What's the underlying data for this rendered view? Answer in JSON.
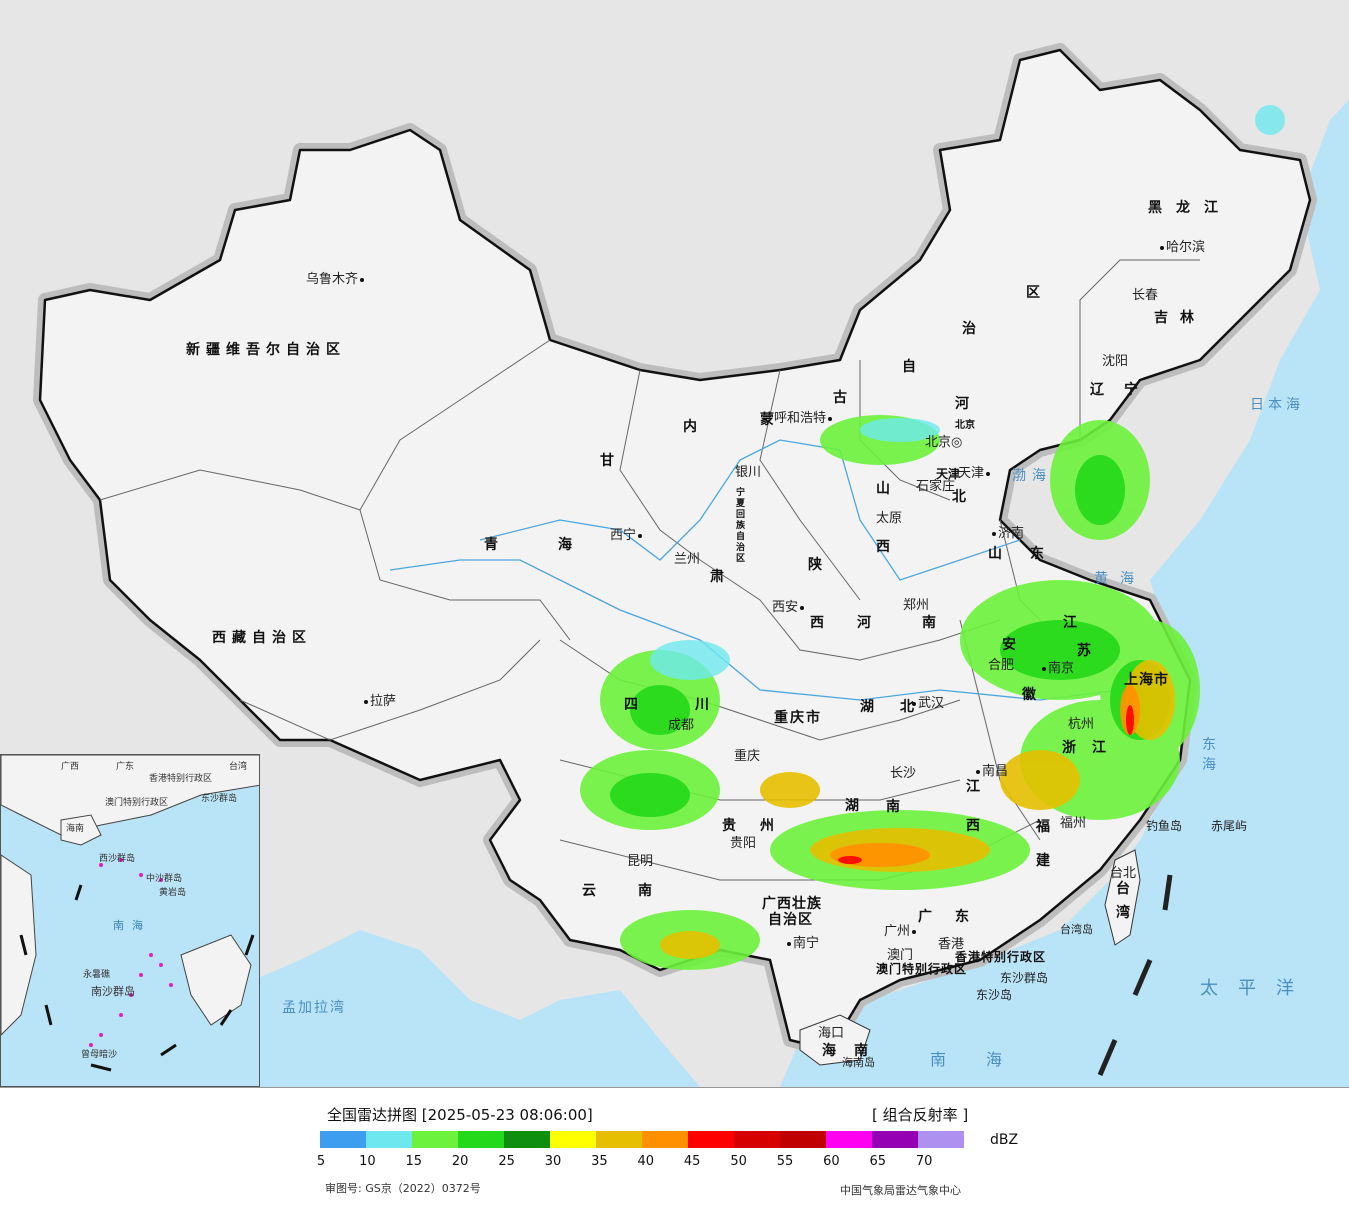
{
  "legend": {
    "title": "全国雷达拼图 [2025-05-23 08:06:00]",
    "product": "[ 组合反射率 ]",
    "unit": "dBZ",
    "approval": "审图号: GS京（2022）0372号",
    "source": "中国气象局雷达气象中心",
    "colors": [
      "#3d9ef0",
      "#6ee8ee",
      "#6cf23c",
      "#24d81a",
      "#0f8f0f",
      "#ffff00",
      "#e6c000",
      "#ff9000",
      "#ff0000",
      "#d60000",
      "#c00000",
      "#ff00f0",
      "#9600b4",
      "#ad90f0"
    ],
    "ticks": [
      "5",
      "10",
      "15",
      "20",
      "25",
      "30",
      "35",
      "40",
      "45",
      "50",
      "55",
      "60",
      "65",
      "70"
    ]
  },
  "provinces": {
    "xinjiang": "新疆维吾尔自治区",
    "xizang": "西藏自治区",
    "qinghai_1": "青",
    "qinghai_2": "海",
    "gansu_1": "甘",
    "gansu_2": "肃",
    "neimenggu_1": "内",
    "neimenggu_2": "蒙",
    "neimenggu_3": "古",
    "neimenggu_4": "自",
    "neimenggu_5": "治",
    "neimenggu_6": "区",
    "heilongjiang": "黑龙江",
    "jilin": "吉林",
    "liaoning": "辽宁",
    "hebei_1": "河",
    "hebei_2": "北",
    "shanxi_1": "山",
    "shanxi_2": "西",
    "shaanxi_1": "陕",
    "shaanxi_2": "西",
    "ningxia": "宁夏回族自治区",
    "shandong_1": "山",
    "shandong_2": "东",
    "henan_1": "河",
    "henan_2": "南",
    "sichuan_1": "四",
    "sichuan_2": "川",
    "chongqing": "重庆市",
    "hubei_1": "湖",
    "hubei_2": "北",
    "anhui_1": "安",
    "anhui_2": "徽",
    "jiangsu_1": "江",
    "jiangsu_2": "苏",
    "shanghai": "上海市",
    "zhejiang_1": "浙",
    "zhejiang_2": "江",
    "hunan_1": "湖",
    "hunan_2": "南",
    "jiangxi_1": "江",
    "jiangxi_2": "西",
    "guizhou_1": "贵",
    "guizhou_2": "州",
    "yunnan_1": "云",
    "yunnan_2": "南",
    "guangxi_1": "广西壮族",
    "guangxi_2": "自治区",
    "guangdong_1": "广",
    "guangdong_2": "东",
    "fujian_1": "福",
    "fujian_2": "建",
    "hainan_1": "海",
    "hainan_2": "南",
    "taiwan_1": "台",
    "taiwan_2": "湾",
    "hongkong": "香港特别行政区",
    "macau": "澳门特别行政区",
    "tianjin": "天津",
    "beijing": "北京"
  },
  "cities": {
    "urumqi": "乌鲁木齐",
    "lhasa": "拉萨",
    "xining": "西宁",
    "lanzhou": "兰州",
    "yinchuan": "银川",
    "hohhot": "呼和浩特",
    "beijing": "北京",
    "tianjin": "天津",
    "shijiazhuang": "石家庄",
    "taiyuan": "太原",
    "jinan": "济南",
    "zhengzhou": "郑州",
    "xian": "西安",
    "chengdu": "成都",
    "chongqing": "重庆",
    "wuhan": "武汉",
    "hefei": "合肥",
    "nanjing": "南京",
    "shanghai": "上海",
    "hangzhou": "杭州",
    "changsha": "长沙",
    "nanchang": "南昌",
    "fuzhou": "福州",
    "guiyang": "贵阳",
    "kunming": "昆明",
    "nanning": "南宁",
    "guangzhou": "广州",
    "hongkong": "香港",
    "macau": "澳门",
    "haikou": "海口",
    "taibei": "台北",
    "harbin": "哈尔滨",
    "changchun": "长春",
    "shenyang": "沈阳"
  },
  "islands": {
    "hainan_island": "海南岛",
    "taiwan_island": "台湾岛",
    "diaoyu": "钓鱼岛",
    "chiwei": "赤尾屿",
    "dongsha": "东沙群岛",
    "dongsha_2": "东沙岛"
  },
  "seas": {
    "bohai": "渤海",
    "huanghai": "黄海",
    "donghai": "东海",
    "nanhai": "南海",
    "taipingyang": "太平洋",
    "ribenhai": "日本海",
    "mengjialawan": "孟加拉湾"
  },
  "inset": {
    "guangxi": "广西",
    "guangdong": "广东",
    "taiwan": "台湾",
    "hongkong": "香港特别行政区",
    "macau": "澳门特别行政区",
    "dongsha": "东沙群岛",
    "hainan": "海南",
    "xisha": "西沙群岛",
    "zhongsha": "中沙群岛",
    "huangyan": "黄岩岛",
    "nanhai": "南海",
    "nansha": "南沙群岛",
    "zengmu": "曾母暗沙",
    "yongshu": "永暑礁"
  }
}
